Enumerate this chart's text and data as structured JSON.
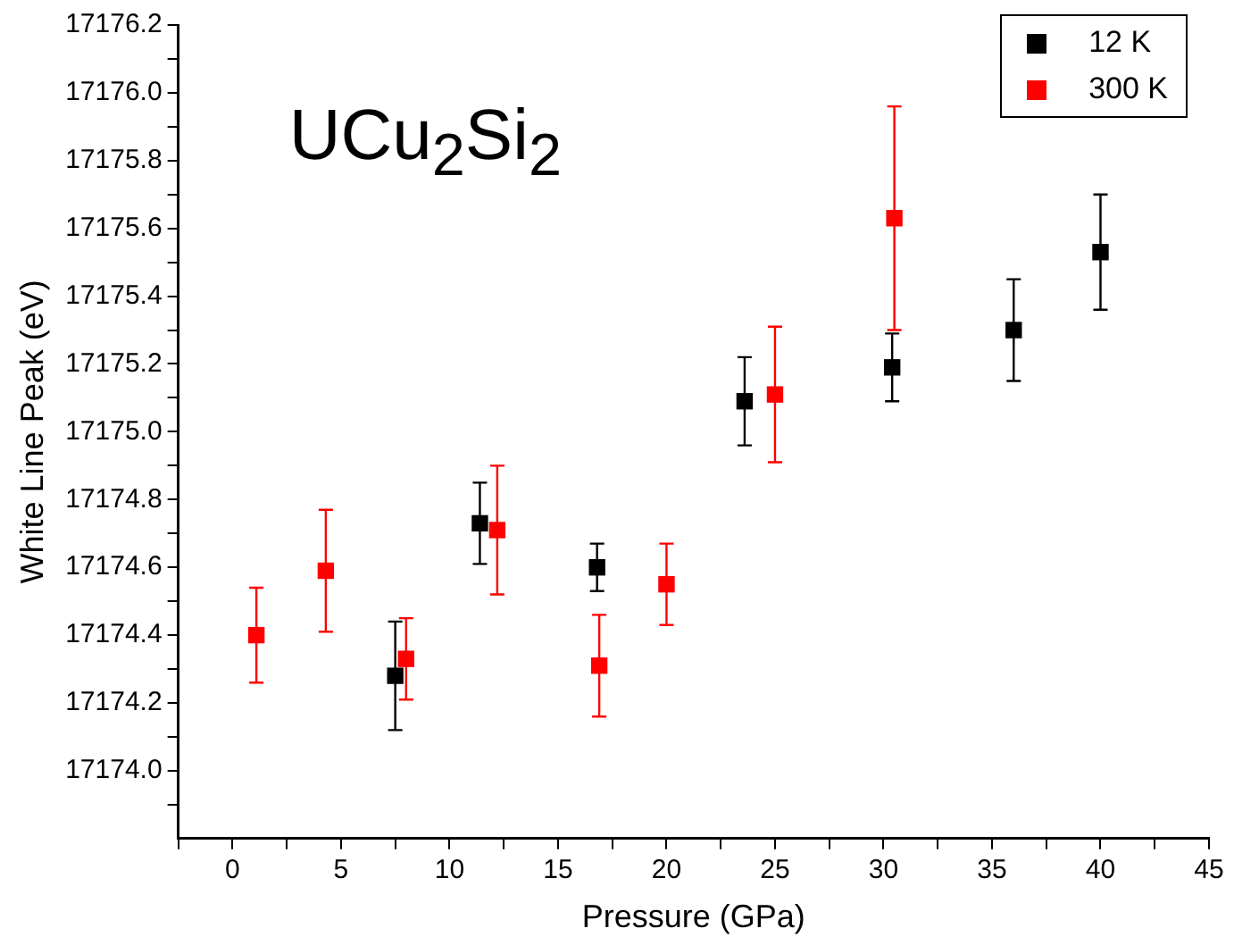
{
  "chart_data": {
    "type": "scatter",
    "xlabel": "Pressure (GPa)",
    "ylabel": "White Line Peak (eV)",
    "annotations": [
      "UCu$_{2}$Si$_{2}$"
    ],
    "xlim": [
      -2.5,
      45
    ],
    "ylim": [
      17173.8,
      17176.2
    ],
    "xticks": [
      {
        "value": -2.5,
        "label": null
      },
      0,
      {
        "value": 2.5,
        "label": null
      },
      5,
      {
        "value": 7.5,
        "label": null
      },
      10,
      {
        "value": 12.5,
        "label": null
      },
      15,
      {
        "value": 17.5,
        "label": null
      },
      20,
      {
        "value": 22.5,
        "label": null
      },
      25,
      {
        "value": 27.5,
        "label": null
      },
      30,
      {
        "value": 32.5,
        "label": null
      },
      35,
      {
        "value": 37.5,
        "label": null
      },
      40,
      {
        "value": 42.5,
        "label": null
      },
      45
    ],
    "yticks": [
      {
        "value": 17173.9,
        "label": null
      },
      {
        "value": 17174.0,
        "label": "17174.0"
      },
      {
        "value": 17174.1,
        "label": null
      },
      {
        "value": 17174.2,
        "label": "17174.2"
      },
      {
        "value": 17174.3,
        "label": null
      },
      {
        "value": 17174.4,
        "label": "17174.4"
      },
      {
        "value": 17174.5,
        "label": null
      },
      {
        "value": 17174.6,
        "label": "17174.6"
      },
      {
        "value": 17174.7,
        "label": null
      },
      {
        "value": 17174.8,
        "label": "17174.8"
      },
      {
        "value": 17174.9,
        "label": null
      },
      {
        "value": 17175.0,
        "label": "17175.0"
      },
      {
        "value": 17175.1,
        "label": null
      },
      {
        "value": 17175.2,
        "label": "17175.2"
      },
      {
        "value": 17175.3,
        "label": null
      },
      {
        "value": 17175.4,
        "label": "17175.4"
      },
      {
        "value": 17175.5,
        "label": null
      },
      {
        "value": 17175.6,
        "label": "17175.6"
      },
      {
        "value": 17175.7,
        "label": null
      },
      {
        "value": 17175.8,
        "label": "17175.8"
      },
      {
        "value": 17175.9,
        "label": null
      },
      {
        "value": 17176.0,
        "label": "17176.0"
      },
      {
        "value": 17176.1,
        "label": null
      },
      {
        "value": 17176.2,
        "label": "17176.2"
      }
    ],
    "grid": false,
    "legend": "top right",
    "marker": "square",
    "series": [
      {
        "name": "12 K",
        "color": "#000000",
        "x": [
          7.5,
          11.4,
          16.8,
          23.6,
          30.4,
          36,
          40
        ],
        "values": [
          17174.28,
          17174.73,
          17174.6,
          17175.09,
          17175.19,
          17175.3,
          17175.53
        ],
        "errors": [
          0.16,
          0.12,
          0.07,
          0.13,
          0.1,
          0.15,
          0.17
        ]
      },
      {
        "name": "300 K",
        "color": "#ff0000",
        "x": [
          1.1,
          4.3,
          8,
          12.2,
          16.9,
          20,
          25,
          30.5
        ],
        "values": [
          17174.4,
          17174.59,
          17174.33,
          17174.71,
          17174.31,
          17174.55,
          17175.11,
          17175.63
        ],
        "errors": [
          0.14,
          0.18,
          0.12,
          0.19,
          0.15,
          0.12,
          0.2,
          0.33
        ]
      }
    ]
  }
}
